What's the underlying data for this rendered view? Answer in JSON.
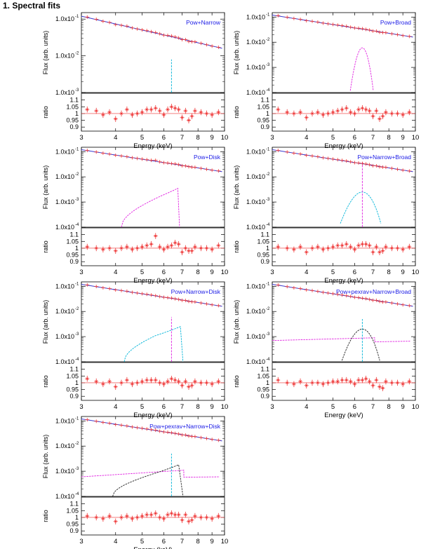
{
  "page": {
    "title": "1. Spectral fits"
  },
  "chart_data": [
    {
      "type": "line",
      "model": "Pow+Narrow",
      "xlabel": "Energy (keV)",
      "ylabel_top": "Flux (arb. units)",
      "ylabel_bottom": "ratio",
      "xlim": [
        3,
        10
      ],
      "ylim_top": [
        0.001,
        0.15
      ],
      "ylim_bottom": [
        0.87,
        1.15
      ],
      "xticks": [
        "3",
        "4",
        "5",
        "6",
        "7",
        "8",
        "9",
        "10"
      ],
      "yticks_top": [
        {
          "v": 0.1,
          "label": "1.0x10",
          "exp": "-1"
        },
        {
          "v": 0.01,
          "label": "1.0x10",
          "exp": "-2"
        },
        {
          "v": 0.001,
          "label": "1.0x10",
          "exp": "-3"
        }
      ],
      "yticks_bottom": [
        {
          "v": 1.1,
          "label": "1.1"
        },
        {
          "v": 1.05,
          "label": "1.05"
        },
        {
          "v": 1.0,
          "label": "1"
        },
        {
          "v": 0.95,
          "label": "0.95"
        },
        {
          "v": 0.9,
          "label": "0.9"
        }
      ],
      "components": [
        {
          "name": "narrow",
          "shape": "gauss",
          "center": 6.4,
          "peak": 0.008,
          "sigma": 0.01,
          "color": "#00b4d8"
        }
      ],
      "ratio": [
        1.03,
        1.02,
        0.99,
        1.01,
        0.96,
        1.0,
        1.03,
        0.99,
        1.0,
        1.01,
        1.03,
        1.03,
        1.04,
        1.02,
        0.99,
        1.03,
        1.05,
        1.04,
        1.03,
        0.97,
        1.02,
        0.95,
        0.98,
        1.02,
        1.01,
        1.0,
        0.99,
        1.01
      ]
    },
    {
      "type": "line",
      "model": "Pow+Broad",
      "xlabel": "Energy (keV)",
      "ylabel_top": "Flux (arb. units)",
      "ylabel_bottom": "ratio",
      "xlim": [
        3,
        10
      ],
      "ylim_top": [
        0.0001,
        0.15
      ],
      "ylim_bottom": [
        0.87,
        1.15
      ],
      "xticks": [
        "3",
        "4",
        "5",
        "6",
        "7",
        "8",
        "9",
        "10"
      ],
      "yticks_top": [
        {
          "v": 0.1,
          "label": "1.0x10",
          "exp": "-1"
        },
        {
          "v": 0.01,
          "label": "1.0x10",
          "exp": "-2"
        },
        {
          "v": 0.001,
          "label": "1.0x10",
          "exp": "-3"
        },
        {
          "v": 0.0001,
          "label": "1.0x10",
          "exp": "-4"
        }
      ],
      "yticks_bottom": [
        {
          "v": 1.1,
          "label": "1.1"
        },
        {
          "v": 1.05,
          "label": "1.05"
        },
        {
          "v": 1.0,
          "label": "1"
        },
        {
          "v": 0.95,
          "label": "0.95"
        },
        {
          "v": 0.9,
          "label": "0.9"
        }
      ],
      "components": [
        {
          "name": "broad",
          "shape": "gauss",
          "center": 6.4,
          "peak": 0.006,
          "sigma": 0.22,
          "color": "#e020e0"
        }
      ],
      "ratio": [
        1.03,
        1.01,
        1.0,
        1.01,
        0.97,
        1.0,
        1.01,
        0.99,
        1.0,
        1.01,
        1.02,
        1.03,
        1.04,
        1.01,
        1.0,
        1.03,
        1.04,
        1.03,
        1.02,
        0.98,
        1.02,
        0.96,
        0.98,
        1.01,
        1.0,
        1.0,
        0.99,
        1.01
      ]
    },
    {
      "type": "line",
      "model": "Pow+Disk",
      "xlabel": "Energy (keV)",
      "ylabel_top": "Flux (arb. units)",
      "ylabel_bottom": "ratio",
      "xlim": [
        3,
        10
      ],
      "ylim_top": [
        0.0001,
        0.15
      ],
      "ylim_bottom": [
        0.87,
        1.15
      ],
      "xticks": [
        "3",
        "4",
        "5",
        "6",
        "7",
        "8",
        "9",
        "10"
      ],
      "yticks_top": [
        {
          "v": 0.1,
          "label": "1.0x10",
          "exp": "-1"
        },
        {
          "v": 0.01,
          "label": "1.0x10",
          "exp": "-2"
        },
        {
          "v": 0.001,
          "label": "1.0x10",
          "exp": "-3"
        },
        {
          "v": 0.0001,
          "label": "1.0x10",
          "exp": "-4"
        }
      ],
      "yticks_bottom": [
        {
          "v": 1.1,
          "label": "1.1"
        },
        {
          "v": 1.05,
          "label": "1.05"
        },
        {
          "v": 1.0,
          "label": "1"
        },
        {
          "v": 0.95,
          "label": "0.95"
        },
        {
          "v": 0.9,
          "label": "0.9"
        }
      ],
      "components": [
        {
          "name": "disk",
          "shape": "disk",
          "start": 4.2,
          "knee": 5.9,
          "peak_e": 6.75,
          "end": 6.85,
          "v_start": 0.0001,
          "v_knee": 0.0018,
          "v_peak": 0.0035,
          "color": "#e020e0"
        }
      ],
      "ratio": [
        1.01,
        1.0,
        0.99,
        1.0,
        0.98,
        1.0,
        1.01,
        0.99,
        1.0,
        1.01,
        1.02,
        1.03,
        1.09,
        1.01,
        0.99,
        1.01,
        1.02,
        1.04,
        1.03,
        0.97,
        1.0,
        0.98,
        0.98,
        1.01,
        1.0,
        1.0,
        0.99,
        1.02
      ]
    },
    {
      "type": "line",
      "model": "Pow+Narrow+Broad",
      "xlabel": "Energy (keV)",
      "ylabel_top": "Flux (arb. units)",
      "ylabel_bottom": "ratio",
      "xlim": [
        3,
        10
      ],
      "ylim_top": [
        0.0001,
        0.15
      ],
      "ylim_bottom": [
        0.87,
        1.15
      ],
      "xticks": [
        "3",
        "4",
        "5",
        "6",
        "7",
        "8",
        "9",
        "10"
      ],
      "yticks_top": [
        {
          "v": 0.1,
          "label": "1.0x10",
          "exp": "-1"
        },
        {
          "v": 0.01,
          "label": "1.0x10",
          "exp": "-2"
        },
        {
          "v": 0.001,
          "label": "1.0x10",
          "exp": "-3"
        },
        {
          "v": 0.0001,
          "label": "1.0x10",
          "exp": "-4"
        }
      ],
      "yticks_bottom": [
        {
          "v": 1.1,
          "label": "1.1"
        },
        {
          "v": 1.05,
          "label": "1.05"
        },
        {
          "v": 1.0,
          "label": "1"
        },
        {
          "v": 0.95,
          "label": "0.95"
        },
        {
          "v": 0.9,
          "label": "0.9"
        }
      ],
      "components": [
        {
          "name": "broad",
          "shape": "gauss",
          "center": 6.4,
          "peak": 0.0025,
          "sigma": 0.45,
          "color": "#00b4d8"
        },
        {
          "name": "narrow",
          "shape": "gauss",
          "center": 6.4,
          "peak": 0.04,
          "sigma": 0.01,
          "color": "#e020e0"
        }
      ],
      "ratio": [
        1.01,
        1.0,
        0.99,
        1.01,
        0.97,
        1.0,
        1.01,
        0.99,
        1.0,
        1.01,
        1.02,
        1.02,
        1.03,
        1.01,
        0.99,
        1.02,
        1.03,
        1.03,
        1.02,
        0.97,
        1.01,
        0.97,
        0.98,
        1.01,
        1.0,
        1.0,
        0.99,
        1.01
      ]
    },
    {
      "type": "line",
      "model": "Pow+Narrow+Disk",
      "xlabel": "Energy (keV)",
      "ylabel_top": "Flux (arb. units)",
      "ylabel_bottom": "ratio",
      "xlim": [
        3,
        10
      ],
      "ylim_top": [
        0.0001,
        0.15
      ],
      "ylim_bottom": [
        0.87,
        1.15
      ],
      "xticks": [
        "3",
        "4",
        "5",
        "6",
        "7",
        "8",
        "9",
        "10"
      ],
      "yticks_top": [
        {
          "v": 0.1,
          "label": "1.0x10",
          "exp": "-1"
        },
        {
          "v": 0.01,
          "label": "1.0x10",
          "exp": "-2"
        },
        {
          "v": 0.001,
          "label": "1.0x10",
          "exp": "-3"
        },
        {
          "v": 0.0001,
          "label": "1.0x10",
          "exp": "-4"
        }
      ],
      "yticks_bottom": [
        {
          "v": 1.1,
          "label": "1.1"
        },
        {
          "v": 1.05,
          "label": "1.05"
        },
        {
          "v": 1.0,
          "label": "1"
        },
        {
          "v": 0.95,
          "label": "0.95"
        },
        {
          "v": 0.9,
          "label": "0.9"
        }
      ],
      "components": [
        {
          "name": "disk",
          "shape": "disk",
          "start": 4.3,
          "knee": 5.6,
          "peak_e": 6.9,
          "end": 7.05,
          "v_start": 0.0001,
          "v_knee": 0.0011,
          "v_peak": 0.0025,
          "color": "#00b4d8"
        },
        {
          "name": "narrow",
          "shape": "gauss",
          "center": 6.4,
          "peak": 0.006,
          "sigma": 0.01,
          "color": "#e020e0"
        }
      ],
      "ratio": [
        1.03,
        1.01,
        0.99,
        1.01,
        0.97,
        1.0,
        1.02,
        0.99,
        1.0,
        1.01,
        1.02,
        1.02,
        1.02,
        1.0,
        0.99,
        1.01,
        1.03,
        1.02,
        1.01,
        0.98,
        1.01,
        0.97,
        0.98,
        1.01,
        1.0,
        1.0,
        0.99,
        1.01
      ]
    },
    {
      "type": "line",
      "model": "Pow+pexrav+Narrow+Broad",
      "xlabel": "Energy (keV)",
      "ylabel_top": "Flux (arb. units)",
      "ylabel_bottom": "ratio",
      "xlim": [
        3,
        10
      ],
      "ylim_top": [
        0.0001,
        0.15
      ],
      "ylim_bottom": [
        0.87,
        1.15
      ],
      "xticks": [
        "3",
        "4",
        "5",
        "6",
        "7",
        "8",
        "9",
        "10"
      ],
      "yticks_top": [
        {
          "v": 0.1,
          "label": "1.0x10",
          "exp": "-1"
        },
        {
          "v": 0.01,
          "label": "1.0x10",
          "exp": "-2"
        },
        {
          "v": 0.001,
          "label": "1.0x10",
          "exp": "-3"
        },
        {
          "v": 0.0001,
          "label": "1.0x10",
          "exp": "-4"
        }
      ],
      "yticks_bottom": [
        {
          "v": 1.1,
          "label": "1.1"
        },
        {
          "v": 1.05,
          "label": "1.05"
        },
        {
          "v": 1.0,
          "label": "1"
        },
        {
          "v": 0.95,
          "label": "0.95"
        },
        {
          "v": 0.9,
          "label": "0.9"
        }
      ],
      "components": [
        {
          "name": "pexrav",
          "shape": "pexrav",
          "v_start": 0.0007,
          "v_edge": 0.0009,
          "edge": 7.1,
          "v_after": 0.00062,
          "v_end": 0.00066,
          "color": "#e020e0"
        },
        {
          "name": "broad",
          "shape": "gauss",
          "center": 6.4,
          "peak": 0.002,
          "sigma": 0.42,
          "color": "#222222"
        },
        {
          "name": "narrow",
          "shape": "gauss",
          "center": 6.4,
          "peak": 0.005,
          "sigma": 0.01,
          "color": "#00b4d8"
        }
      ],
      "ratio": [
        1.02,
        1.0,
        0.99,
        1.01,
        0.98,
        1.0,
        1.0,
        0.99,
        1.0,
        1.01,
        1.01,
        1.02,
        1.02,
        1.01,
        0.99,
        1.02,
        1.02,
        1.03,
        1.01,
        0.98,
        1.02,
        0.97,
        0.96,
        1.01,
        1.0,
        1.0,
        0.99,
        1.01
      ]
    },
    {
      "type": "line",
      "model": "Pow+pexrav+Narrow+Disk",
      "xlabel": "Energy (keV)",
      "ylabel_top": "Flux (arb. units)",
      "ylabel_bottom": "ratio",
      "xlim": [
        3,
        10
      ],
      "ylim_top": [
        0.0001,
        0.15
      ],
      "ylim_bottom": [
        0.87,
        1.15
      ],
      "xticks": [
        "3",
        "4",
        "5",
        "6",
        "7",
        "8",
        "9",
        "10"
      ],
      "yticks_top": [
        {
          "v": 0.1,
          "label": "1.0x10",
          "exp": "-1"
        },
        {
          "v": 0.01,
          "label": "1.0x10",
          "exp": "-2"
        },
        {
          "v": 0.001,
          "label": "1.0x10",
          "exp": "-3"
        },
        {
          "v": 0.0001,
          "label": "1.0x10",
          "exp": "-4"
        }
      ],
      "yticks_bottom": [
        {
          "v": 1.1,
          "label": "1.1"
        },
        {
          "v": 1.05,
          "label": "1.05"
        },
        {
          "v": 1.0,
          "label": "1"
        },
        {
          "v": 0.95,
          "label": "0.95"
        },
        {
          "v": 0.9,
          "label": "0.9"
        }
      ],
      "components": [
        {
          "name": "pexrav",
          "shape": "pexrav",
          "v_start": 0.0006,
          "v_edge": 0.0011,
          "edge": 7.1,
          "v_after": 0.00058,
          "v_end": 0.0006,
          "color": "#e020e0"
        },
        {
          "name": "disk",
          "shape": "disk",
          "start": 3.9,
          "knee": 5.7,
          "peak_e": 6.8,
          "end": 7.05,
          "v_start": 0.0001,
          "v_knee": 0.0009,
          "v_peak": 0.0018,
          "color": "#222222"
        },
        {
          "name": "narrow",
          "shape": "gauss",
          "center": 6.4,
          "peak": 0.005,
          "sigma": 0.01,
          "color": "#00b4d8"
        }
      ],
      "ratio": [
        1.01,
        1.0,
        0.99,
        1.01,
        0.97,
        1.0,
        1.01,
        0.99,
        1.0,
        1.01,
        1.02,
        1.02,
        1.03,
        1.0,
        0.99,
        1.02,
        1.03,
        1.02,
        1.02,
        0.98,
        1.02,
        0.97,
        0.98,
        1.01,
        1.0,
        1.0,
        0.99,
        1.01
      ]
    }
  ]
}
